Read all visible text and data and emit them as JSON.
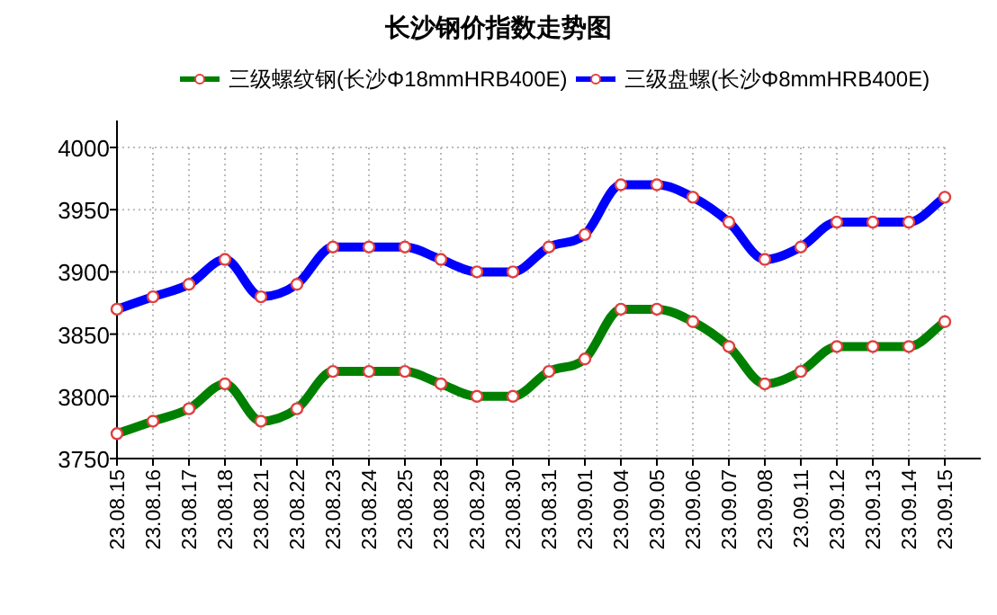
{
  "chart_data": {
    "type": "line",
    "title": "长沙钢价指数走势图",
    "categories": [
      "23.08.15",
      "23.08.16",
      "23.08.17",
      "23.08.18",
      "23.08.21",
      "23.08.22",
      "23.08.23",
      "23.08.24",
      "23.08.25",
      "23.08.28",
      "23.08.29",
      "23.08.30",
      "23.08.31",
      "23.09.01",
      "23.09.04",
      "23.09.05",
      "23.09.06",
      "23.09.07",
      "23.09.08",
      "23.09.11",
      "23.09.12",
      "23.09.13",
      "23.09.14",
      "23.09.15"
    ],
    "series": [
      {
        "name": "三级螺纹钢(长沙Φ18mmHRB400E)",
        "color": "#008000",
        "values": [
          3770,
          3780,
          3790,
          3810,
          3780,
          3790,
          3820,
          3820,
          3820,
          3810,
          3800,
          3800,
          3820,
          3830,
          3870,
          3870,
          3860,
          3840,
          3810,
          3820,
          3840,
          3840,
          3840,
          3860
        ]
      },
      {
        "name": "三级盘螺(长沙Φ8mmHRB400E)",
        "color": "#0000ff",
        "values": [
          3870,
          3880,
          3890,
          3910,
          3880,
          3890,
          3920,
          3920,
          3920,
          3910,
          3900,
          3900,
          3920,
          3930,
          3970,
          3970,
          3960,
          3940,
          3910,
          3920,
          3940,
          3940,
          3940,
          3960
        ]
      }
    ],
    "ylim": [
      3750,
      4000
    ],
    "yticks": [
      3750,
      3800,
      3850,
      3900,
      3950,
      4000
    ],
    "grid": true,
    "legend": "top",
    "marker": "circle",
    "line_style": "solid"
  }
}
